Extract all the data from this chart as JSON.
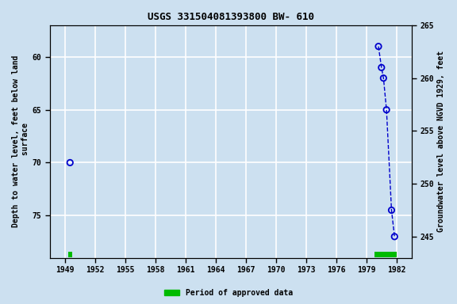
{
  "title": "USGS 331504081393800 BW- 610",
  "ylabel_left": "Depth to water level, feet below land\n surface",
  "ylabel_right": "Groundwater level above NGVD 1929, feet",
  "xlim": [
    1947.5,
    1983.5
  ],
  "ylim_left": [
    57,
    79
  ],
  "ylim_right": [
    243,
    267
  ],
  "xticks": [
    1949,
    1952,
    1955,
    1958,
    1961,
    1964,
    1967,
    1970,
    1973,
    1976,
    1979,
    1982
  ],
  "yticks_left": [
    60,
    65,
    70,
    75
  ],
  "yticks_right": [
    245,
    250,
    255,
    260,
    265
  ],
  "isolated_x": [
    1949.5
  ],
  "isolated_y": [
    70.0
  ],
  "cluster_x": [
    1980.2,
    1980.5,
    1980.7,
    1981.0,
    1981.5,
    1981.8
  ],
  "cluster_y": [
    59.0,
    61.0,
    62.0,
    65.0,
    74.5,
    77.0
  ],
  "bar1_x_start": 1949.3,
  "bar1_x_end": 1949.7,
  "bar2_x_start": 1979.8,
  "bar2_x_end": 1982.0,
  "bar_y": 78.7,
  "bar_height": 0.5,
  "point_color": "#0000cc",
  "line_color": "#0000cc",
  "bar_color": "#00bb00",
  "bg_color": "#cce0f0",
  "grid_color": "#ffffff",
  "font_family": "monospace",
  "title_fontsize": 9,
  "label_fontsize": 7,
  "tick_fontsize": 7
}
